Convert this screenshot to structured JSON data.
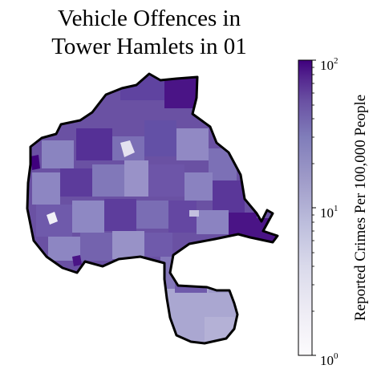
{
  "title": {
    "line1": "Vehicle Offences in",
    "line2": "Tower Hamlets in 01"
  },
  "colorbar": {
    "label": "Reported Crimes Per 100,000 People",
    "scale": "log",
    "ticks": [
      {
        "base": "10",
        "exp": "0",
        "value": 1
      },
      {
        "base": "10",
        "exp": "1",
        "value": 10
      },
      {
        "base": "10",
        "exp": "2",
        "value": 100
      }
    ],
    "color_stops": [
      "#fcfbfd",
      "#dadaeb",
      "#bcbddc",
      "#9e9ac8",
      "#807dba",
      "#6a51a3",
      "#54278f",
      "#3f007d"
    ]
  },
  "map": {
    "region": "Tower Hamlets",
    "colors": {
      "boundary": "#000000",
      "dominant": "#6a51a3",
      "light": "#9e9ac8",
      "dark": "#4a1486",
      "south": "#a9a6d0"
    }
  }
}
